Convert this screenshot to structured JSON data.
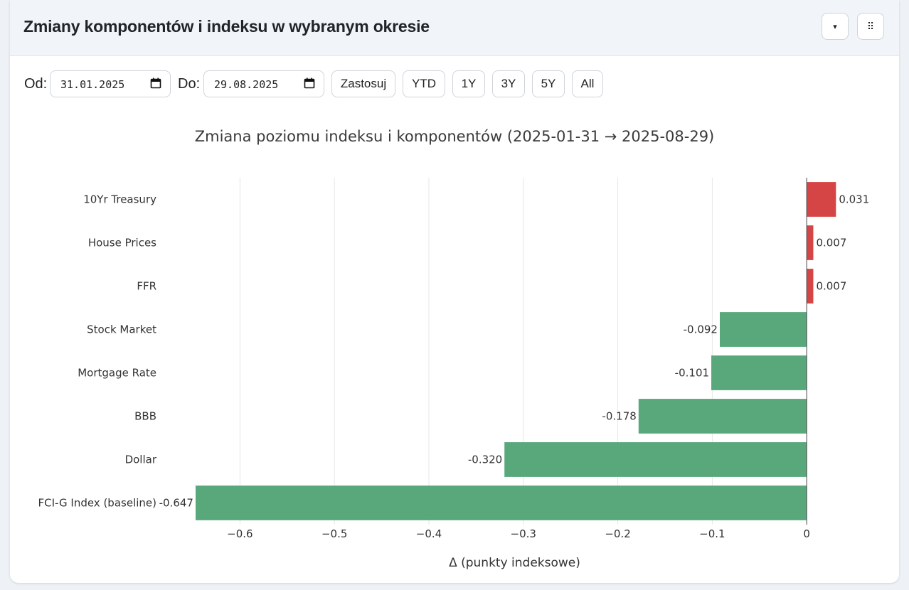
{
  "header": {
    "title": "Zmiany komponentów i indeksu w wybranym okresie",
    "dropdown_icon": "▾",
    "menu_icon": "⠿"
  },
  "controls": {
    "from_label": "Od:",
    "from_value": "31.01.2025",
    "to_label": "Do:",
    "to_value": "29.08.2025",
    "apply_label": "Zastosuj",
    "ranges": [
      "YTD",
      "1Y",
      "3Y",
      "5Y",
      "All"
    ]
  },
  "colors": {
    "positive": "#d64545",
    "negative": "#58a87c"
  },
  "chart_data": {
    "type": "bar",
    "orientation": "horizontal",
    "title": "Zmiana poziomu indeksu i komponentów (2025-01-31 → 2025-08-29)",
    "xlabel": "Δ (punkty indeksowe)",
    "ylabel": "",
    "categories": [
      "10Yr Treasury",
      "House Prices",
      "FFR",
      "Stock Market",
      "Mortgage Rate",
      "BBB",
      "Dollar",
      "FCI-G Index (baseline)"
    ],
    "values": [
      0.031,
      0.007,
      0.007,
      -0.092,
      -0.101,
      -0.178,
      -0.32,
      -0.647
    ],
    "value_labels": [
      "0.031",
      "0.007",
      "0.007",
      "-0.092",
      "-0.101",
      "-0.178",
      "-0.320",
      "-0.647"
    ],
    "xlim": [
      -0.65,
      0.03
    ],
    "xticks": [
      -0.6,
      -0.5,
      -0.4,
      -0.3,
      -0.2,
      -0.1,
      0
    ],
    "xtick_labels": [
      "−0.6",
      "−0.5",
      "−0.4",
      "−0.3",
      "−0.2",
      "−0.1",
      "0"
    ],
    "grid": true,
    "legend": "none"
  }
}
